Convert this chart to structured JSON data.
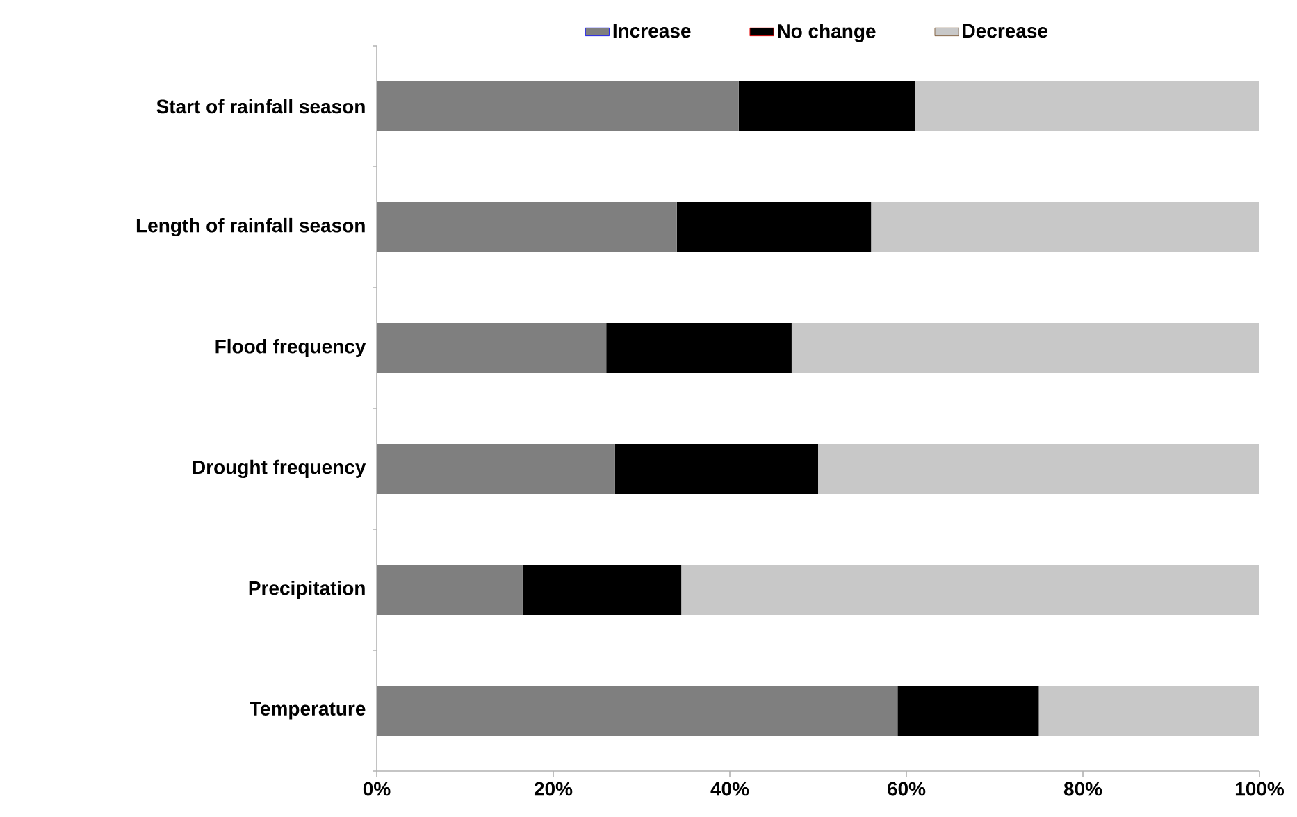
{
  "chart_data": {
    "type": "bar",
    "orientation": "horizontal",
    "stacked": true,
    "categories": [
      "Start of rainfall season",
      "Length of rainfall season",
      "Flood frequency",
      "Drought frequency",
      "Precipitation",
      "Temperature"
    ],
    "series": [
      {
        "name": "Increase",
        "color": "#7f7f7f",
        "values": [
          41,
          34,
          26,
          27,
          16.5,
          59
        ]
      },
      {
        "name": "No change",
        "color": "#000000",
        "values": [
          20,
          22,
          21,
          23,
          18,
          16
        ]
      },
      {
        "name": "Decrease",
        "color": "#c8c8c8",
        "values": [
          39,
          44,
          53,
          50,
          65.5,
          25
        ]
      }
    ],
    "xlim": [
      0,
      100
    ],
    "xticks": [
      {
        "value": 0,
        "label": "0%"
      },
      {
        "value": 20,
        "label": "20%"
      },
      {
        "value": 40,
        "label": "40%"
      },
      {
        "value": 60,
        "label": "60%"
      },
      {
        "value": 80,
        "label": "80%"
      },
      {
        "value": 100,
        "label": "100%"
      }
    ],
    "legend": "top",
    "grid": false
  }
}
